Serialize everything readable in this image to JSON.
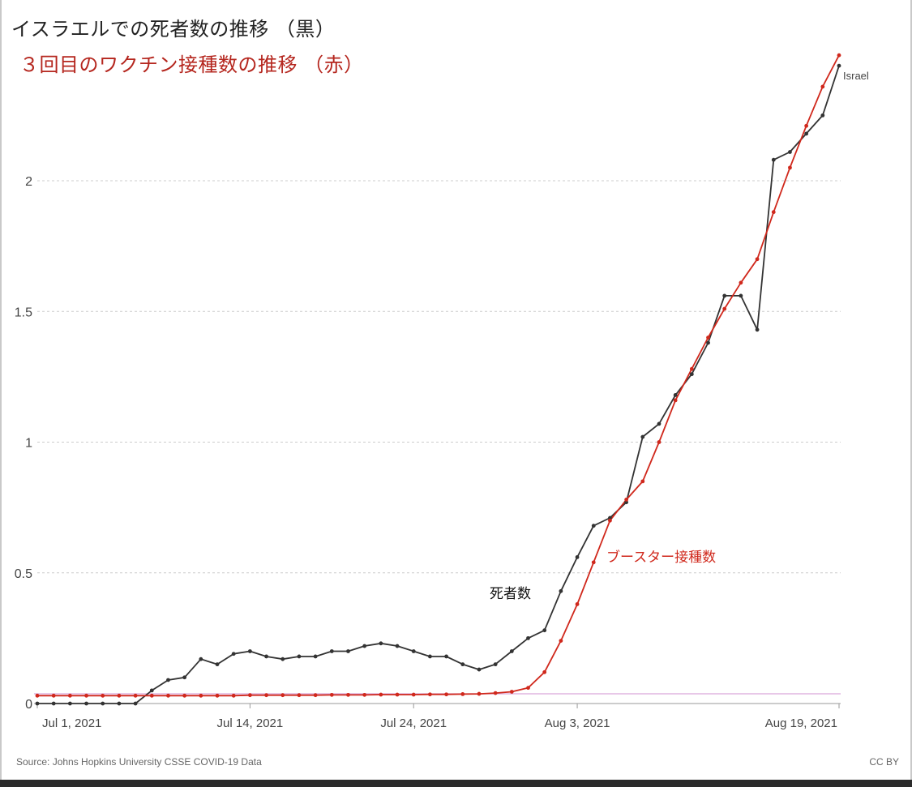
{
  "titles": {
    "line1": "イスラエルでの死者数の推移 （黒）",
    "line2": "３回目のワクチン接種数の推移 （赤）"
  },
  "footer": {
    "source": "Source: Johns Hopkins University CSSE COVID-19 Data",
    "license": "CC BY"
  },
  "colors": {
    "deaths": "#333333",
    "booster": "#d0281c",
    "grid": "#cccccc",
    "baseline": "#d9a8d9"
  },
  "chart_data": {
    "type": "line",
    "title": "",
    "xlabel": "",
    "ylabel": "",
    "ylim": [
      0,
      2.5
    ],
    "y_ticks": [
      0,
      0.5,
      1,
      1.5,
      2
    ],
    "y_tick_labels": [
      "0",
      "0.5",
      "1",
      "1.5",
      "2"
    ],
    "x_ticks": [
      {
        "day": 0,
        "label": "Jul 1, 2021"
      },
      {
        "day": 13,
        "label": "Jul 14, 2021"
      },
      {
        "day": 23,
        "label": "Jul 24, 2021"
      },
      {
        "day": 33,
        "label": "Aug 3, 2021"
      },
      {
        "day": 49,
        "label": "Aug 19, 2021"
      }
    ],
    "grid": true,
    "legend": "none",
    "series_end_label": "Israel",
    "annotations": {
      "deaths": "死者数",
      "booster": "ブースター接種数"
    },
    "series": [
      {
        "name": "Israel",
        "key": "deaths",
        "days": [
          0,
          1,
          2,
          3,
          4,
          5,
          6,
          7,
          8,
          9,
          10,
          11,
          12,
          13,
          14,
          15,
          16,
          17,
          18,
          19,
          20,
          21,
          22,
          23,
          24,
          25,
          26,
          27,
          28,
          29,
          30,
          31,
          32,
          33,
          34,
          35,
          36,
          37,
          38,
          39,
          40,
          41,
          42,
          43,
          44,
          45,
          46,
          47,
          48,
          49
        ],
        "values": [
          0,
          0,
          0,
          0,
          0,
          0,
          0,
          0.05,
          0.09,
          0.1,
          0.17,
          0.15,
          0.19,
          0.2,
          0.18,
          0.17,
          0.18,
          0.18,
          0.2,
          0.2,
          0.22,
          0.23,
          0.22,
          0.2,
          0.18,
          0.18,
          0.15,
          0.13,
          0.15,
          0.2,
          0.25,
          0.28,
          0.43,
          0.56,
          0.68,
          0.71,
          0.77,
          1.02,
          1.07,
          1.18,
          1.26,
          1.38,
          1.56,
          1.56,
          1.43,
          2.08,
          2.11,
          2.18,
          2.25,
          2.44
        ]
      },
      {
        "name": "",
        "key": "booster",
        "days": [
          0,
          1,
          2,
          3,
          4,
          5,
          6,
          7,
          8,
          9,
          10,
          11,
          12,
          13,
          14,
          15,
          16,
          17,
          18,
          19,
          20,
          21,
          22,
          23,
          24,
          25,
          26,
          27,
          28,
          29,
          30,
          31,
          32,
          33,
          34,
          35,
          36,
          37,
          38,
          39,
          40,
          41,
          42,
          43,
          44,
          45,
          46,
          47,
          48,
          49
        ],
        "values": [
          0.03,
          0.03,
          0.03,
          0.03,
          0.03,
          0.03,
          0.03,
          0.03,
          0.03,
          0.03,
          0.03,
          0.03,
          0.03,
          0.032,
          0.032,
          0.032,
          0.032,
          0.032,
          0.033,
          0.033,
          0.033,
          0.034,
          0.034,
          0.034,
          0.035,
          0.035,
          0.036,
          0.037,
          0.04,
          0.045,
          0.06,
          0.12,
          0.24,
          0.38,
          0.54,
          0.7,
          0.78,
          0.85,
          1.0,
          1.16,
          1.28,
          1.4,
          1.51,
          1.61,
          1.7,
          1.88,
          2.05,
          2.21,
          2.36,
          2.48
        ]
      }
    ]
  }
}
